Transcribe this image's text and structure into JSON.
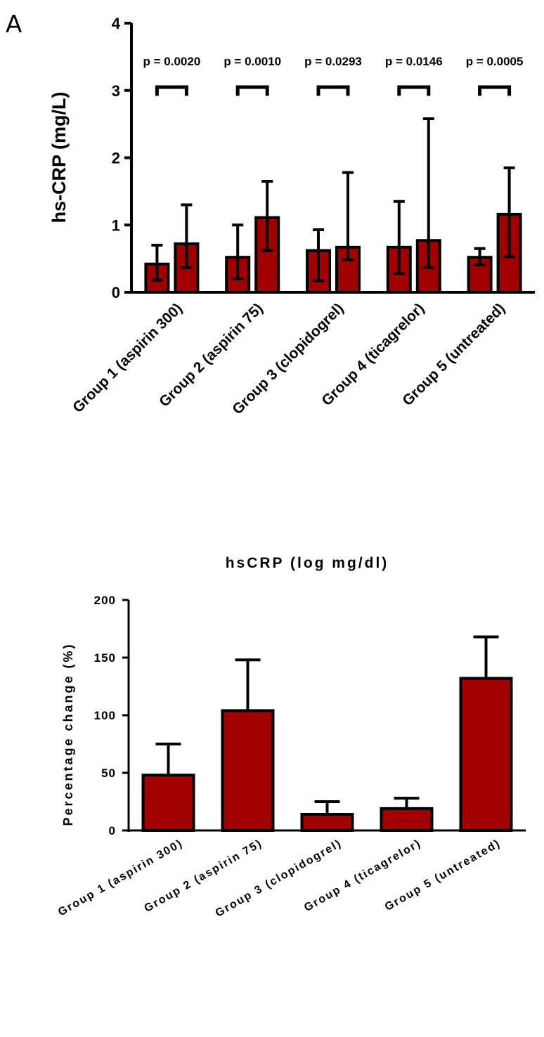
{
  "chart_data": [
    {
      "type": "bar",
      "panel_label": "A",
      "ylabel": "hs-CRP (mg/L)",
      "ylim": [
        0,
        4
      ],
      "yticks": [
        "0",
        "1",
        "2",
        "3",
        "4"
      ],
      "categories": [
        "Group 1 (aspirin 300)",
        "Group 2 (aspirin 75)",
        "Group 3 (clopidogrel)",
        "Group 4 (ticagrelor)",
        "Group 5 (untreated)"
      ],
      "series": [
        {
          "values": [
            0.42,
            0.52,
            0.62,
            0.67,
            0.52
          ],
          "err_low": [
            0.18,
            0.2,
            0.17,
            0.28,
            0.41
          ],
          "err_high": [
            0.7,
            1.0,
            0.93,
            1.35,
            0.65
          ]
        },
        {
          "values": [
            0.72,
            1.11,
            0.67,
            0.77,
            1.16
          ],
          "err_low": [
            0.37,
            0.62,
            0.48,
            0.37,
            0.53
          ],
          "err_high": [
            1.3,
            1.65,
            1.78,
            2.58,
            1.85
          ]
        }
      ],
      "p_values": [
        "p = 0.0020",
        "p = 0.0010",
        "p = 0.0293",
        "p = 0.0146",
        "p = 0.0005"
      ],
      "bar_color": "#a00000"
    },
    {
      "type": "bar",
      "title": "hsCRP (log mg/dl)",
      "ylabel": "Percentage change (%)",
      "ylim": [
        0,
        200
      ],
      "yticks": [
        "0",
        "50",
        "100",
        "150",
        "200"
      ],
      "categories": [
        "Group 1 (aspirin 300)",
        "Group 2 (aspirin 75)",
        "Group 3 (clopidogrel)",
        "Group 4 (ticagrelor)",
        "Group 5 (untreated)"
      ],
      "values": [
        48,
        104,
        14,
        19,
        132
      ],
      "err_high": [
        75,
        148,
        25,
        28,
        168
      ],
      "bar_color": "#a00000"
    }
  ]
}
